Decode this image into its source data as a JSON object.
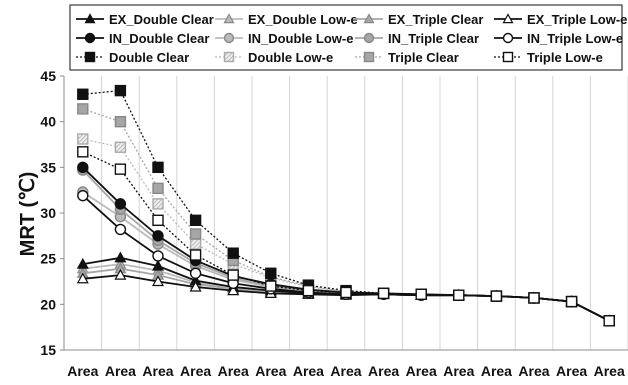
{
  "chart_data": {
    "type": "line",
    "title": "",
    "xlabel": "",
    "ylabel": "MRT (℃)",
    "ylim": [
      15,
      45
    ],
    "yticks": [
      15,
      20,
      25,
      30,
      35,
      40,
      45
    ],
    "grid": "vertical",
    "legend_position": "top",
    "categories": [
      "Area",
      "Area",
      "Area",
      "Area",
      "Area",
      "Area",
      "Area",
      "Area",
      "Area",
      "Area",
      "Area",
      "Area",
      "Area",
      "Area",
      "Area"
    ],
    "series": [
      {
        "name": "EX_Double Clear",
        "color": "#111111",
        "line": "solid",
        "marker": "triangle",
        "values": [
          24.4,
          25.1,
          24.2,
          22.6,
          21.9,
          21.5,
          21.2,
          21.1,
          21.1,
          21.0,
          21.0,
          20.9,
          20.7,
          20.3,
          18.2
        ]
      },
      {
        "name": "EX_Double Low-e",
        "color": "#bbbbbb",
        "line": "solid",
        "marker": "triangle",
        "values": [
          23.9,
          24.4,
          23.7,
          22.4,
          21.8,
          21.4,
          21.2,
          21.1,
          21.1,
          21.0,
          21.0,
          20.9,
          20.7,
          20.3,
          18.2
        ]
      },
      {
        "name": "EX_Triple Clear",
        "color": "#a6a6a6",
        "line": "solid",
        "marker": "triangle",
        "values": [
          23.4,
          23.9,
          23.2,
          22.2,
          21.7,
          21.3,
          21.1,
          21.1,
          21.1,
          21.0,
          21.0,
          20.9,
          20.7,
          20.3,
          18.2
        ]
      },
      {
        "name": "EX_Triple Low-e",
        "color": "#111111",
        "line": "solid",
        "marker": "triangle-open",
        "values": [
          22.8,
          23.2,
          22.5,
          21.9,
          21.5,
          21.2,
          21.1,
          21.0,
          21.1,
          21.0,
          21.0,
          20.9,
          20.7,
          20.3,
          18.2
        ]
      },
      {
        "name": "IN_Double Clear",
        "color": "#111111",
        "line": "solid",
        "marker": "circle",
        "values": [
          35.0,
          31.0,
          27.5,
          24.8,
          23.1,
          22.2,
          21.6,
          21.3,
          21.2,
          21.1,
          21.0,
          20.9,
          20.7,
          20.3,
          18.2
        ]
      },
      {
        "name": "IN_Double Low-e",
        "color": "#bbbbbb",
        "line": "solid",
        "marker": "circle",
        "values": [
          32.3,
          29.6,
          26.6,
          24.2,
          22.7,
          21.9,
          21.4,
          21.2,
          21.2,
          21.1,
          21.0,
          20.9,
          20.7,
          20.3,
          18.2
        ]
      },
      {
        "name": "IN_Triple Clear",
        "color": "#a6a6a6",
        "line": "solid",
        "marker": "circle",
        "values": [
          34.7,
          30.4,
          27.0,
          24.5,
          22.9,
          22.0,
          21.5,
          21.2,
          21.2,
          21.0,
          21.0,
          20.9,
          20.7,
          20.3,
          18.2
        ]
      },
      {
        "name": "IN_Triple Low-e",
        "color": "#111111",
        "line": "solid",
        "marker": "circle-open",
        "values": [
          31.9,
          28.2,
          25.3,
          23.4,
          22.3,
          21.7,
          21.3,
          21.1,
          21.1,
          21.0,
          21.0,
          20.9,
          20.7,
          20.3,
          18.2
        ]
      },
      {
        "name": "Double Clear",
        "color": "#111111",
        "line": "dotted",
        "marker": "square",
        "values": [
          43.0,
          43.4,
          35.0,
          29.2,
          25.6,
          23.4,
          22.1,
          21.5,
          21.2,
          21.1,
          21.0,
          20.9,
          20.7,
          20.3,
          18.2
        ]
      },
      {
        "name": "Double Low-e",
        "color": "#bbbbbb",
        "line": "dotted",
        "marker": "square-hatched",
        "values": [
          38.1,
          37.2,
          31.0,
          26.6,
          24.4,
          22.9,
          21.9,
          21.4,
          21.2,
          21.1,
          21.0,
          20.9,
          20.7,
          20.3,
          18.2
        ]
      },
      {
        "name": "Triple Clear",
        "color": "#a6a6a6",
        "line": "dotted",
        "marker": "square",
        "values": [
          41.4,
          40.0,
          32.7,
          27.7,
          24.8,
          23.0,
          22.0,
          21.4,
          21.2,
          21.1,
          21.0,
          20.9,
          20.7,
          20.3,
          18.2
        ]
      },
      {
        "name": "Triple Low-e",
        "color": "#111111",
        "line": "dotted",
        "marker": "square-open",
        "values": [
          36.7,
          34.8,
          29.2,
          25.4,
          23.2,
          22.0,
          21.5,
          21.3,
          21.2,
          21.1,
          21.0,
          20.9,
          20.7,
          20.3,
          18.2
        ]
      }
    ]
  }
}
